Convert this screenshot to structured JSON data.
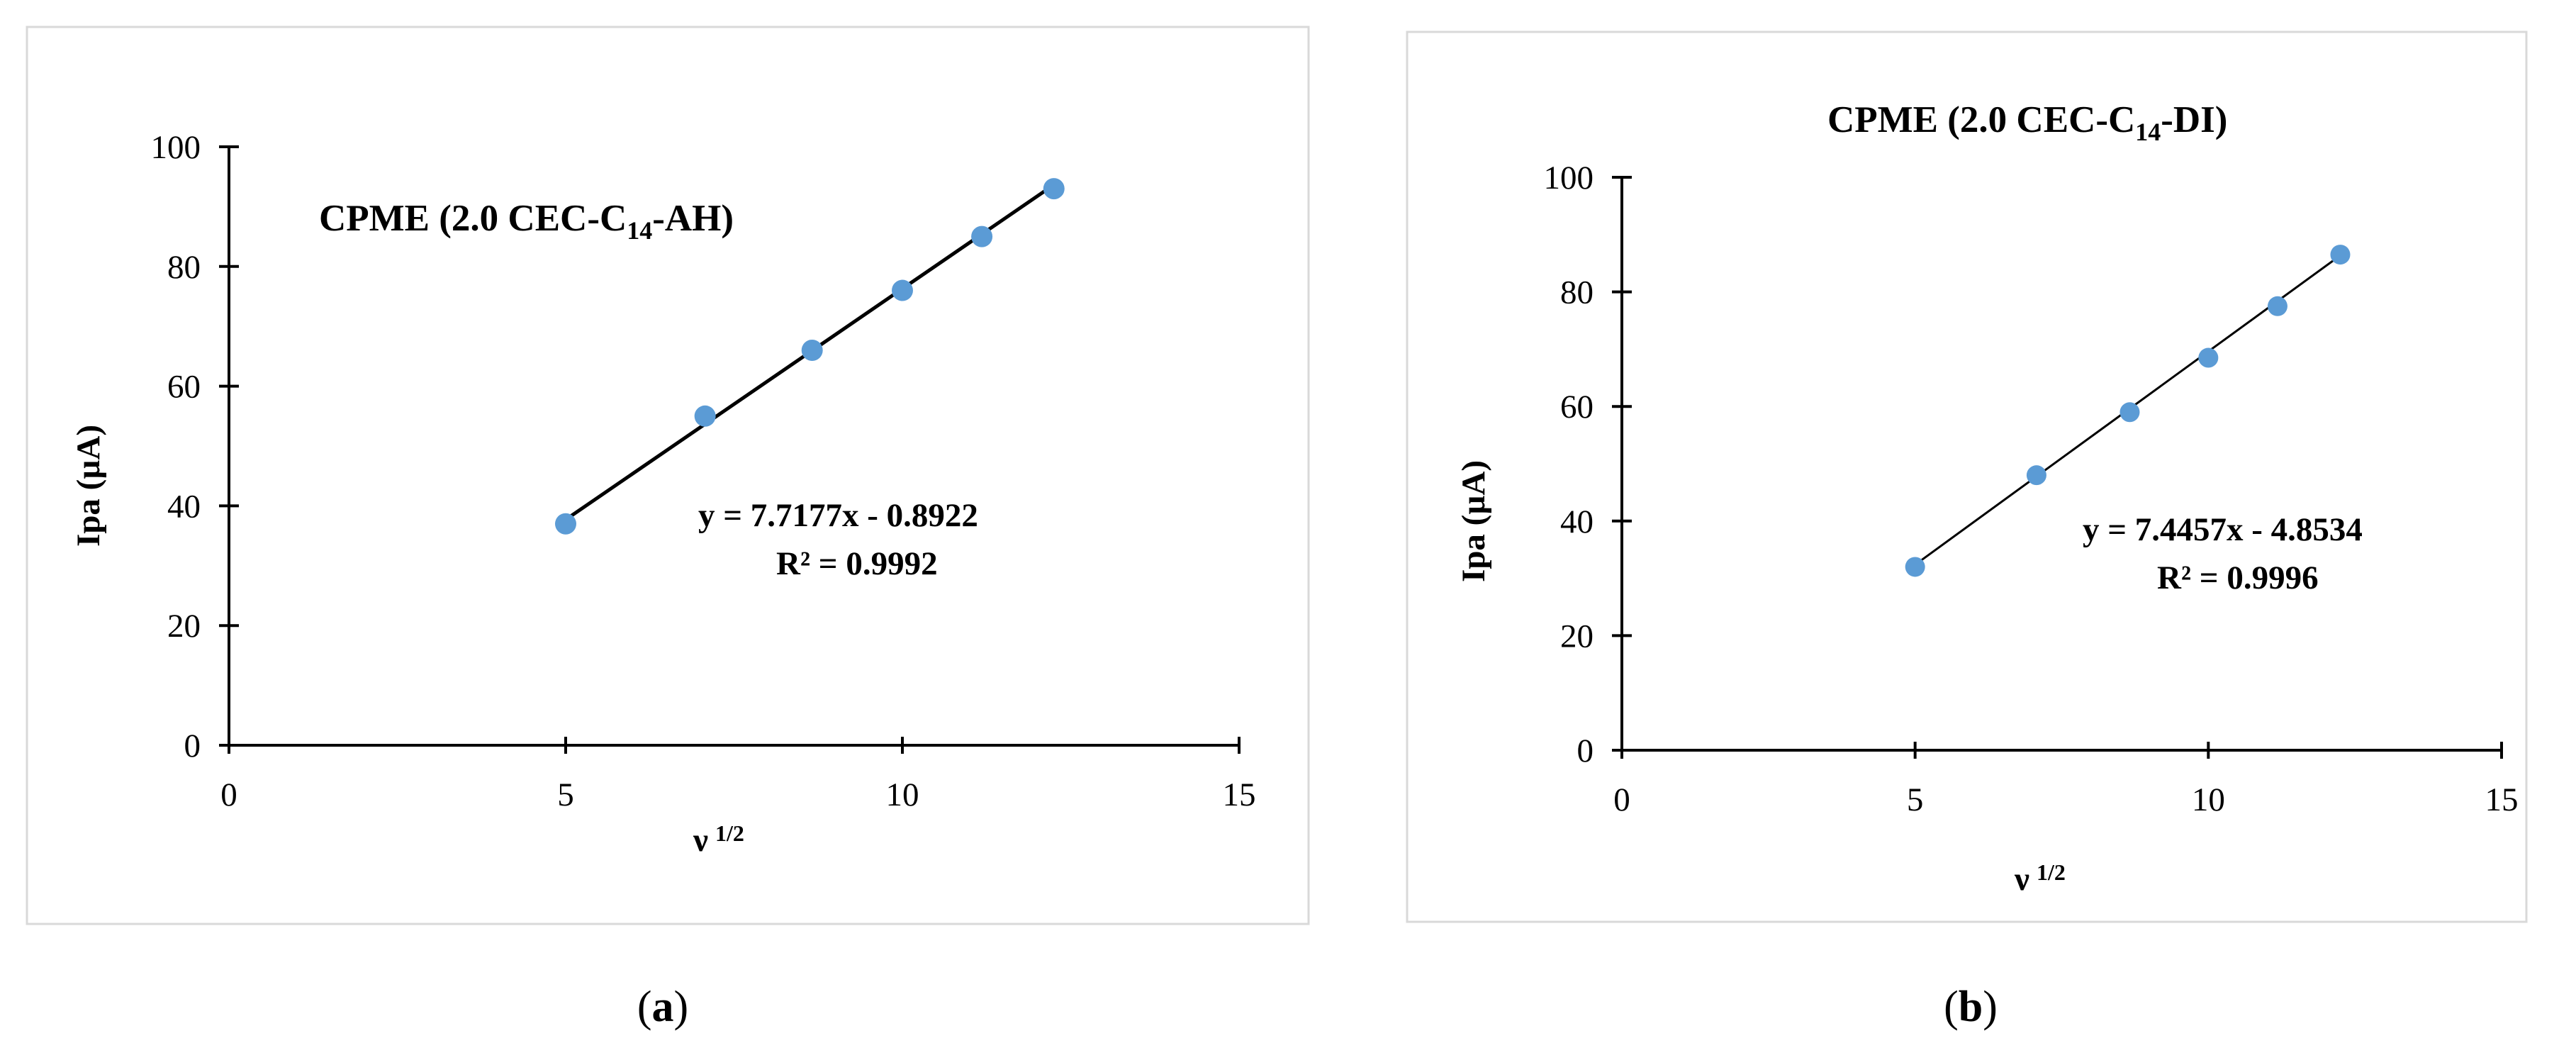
{
  "chart_data": [
    {
      "type": "scatter",
      "title_prefix": "CPME (2.0 CEC-C",
      "title_sub": "14",
      "title_suffix": "-AH)",
      "xlabel": "ν",
      "xlabel_sup": "1/2",
      "ylabel": "Ipa (µA)",
      "xlim": [
        0,
        15
      ],
      "ylim": [
        0,
        100
      ],
      "xticks": [
        "0",
        "5",
        "10",
        "15"
      ],
      "yticks": [
        "0",
        "20",
        "40",
        "60",
        "80",
        "100"
      ],
      "x": [
        5.0,
        7.07,
        8.66,
        10.0,
        11.18,
        12.25
      ],
      "y": [
        37,
        55,
        66,
        76,
        85,
        93
      ],
      "trendline": {
        "slope": 7.7177,
        "intercept": -0.8922
      },
      "equation": "y = 7.7177x - 0.8922",
      "r2": "R² = 0.9992",
      "point_color": "#5b9bd5",
      "caption_open": "(",
      "caption_letter": "a",
      "caption_close": ")"
    },
    {
      "type": "scatter",
      "title_prefix": "CPME (2.0 CEC-C",
      "title_sub": "14",
      "title_suffix": "-DI)",
      "xlabel": "ν",
      "xlabel_sup": "1/2",
      "ylabel": "Ipa (µA)",
      "xlim": [
        0,
        15
      ],
      "ylim": [
        0,
        100
      ],
      "xticks": [
        "0",
        "5",
        "10",
        "15"
      ],
      "yticks": [
        "0",
        "20",
        "40",
        "60",
        "80",
        "100"
      ],
      "x": [
        5.0,
        7.07,
        8.66,
        10.0,
        11.18,
        12.25
      ],
      "y": [
        32,
        48,
        59,
        68.5,
        77.5,
        86.5
      ],
      "trendline": {
        "slope": 7.4457,
        "intercept": -4.8534
      },
      "equation": "y = 7.4457x - 4.8534",
      "r2": "R² = 0.9996",
      "point_color": "#5b9bd5",
      "caption_open": "(",
      "caption_letter": "b",
      "caption_close": ")"
    }
  ]
}
